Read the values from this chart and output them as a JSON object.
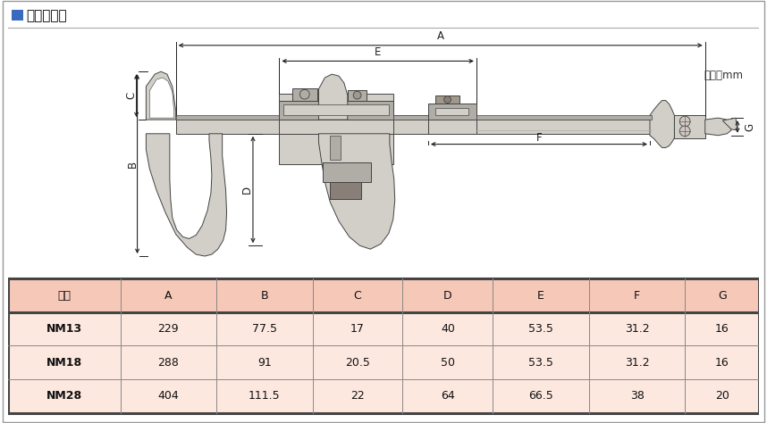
{
  "title_square_color": "#3a6abf",
  "title_text": "外観寸法図",
  "unit_label": "単位：mm",
  "table_header": [
    "符号",
    "A",
    "B",
    "C",
    "D",
    "E",
    "F",
    "G"
  ],
  "table_rows": [
    [
      "NM13",
      "229",
      "77.5",
      "17",
      "40",
      "53.5",
      "31.2",
      "16"
    ],
    [
      "NM18",
      "288",
      "91",
      "20.5",
      "50",
      "53.5",
      "31.2",
      "16"
    ],
    [
      "NM28",
      "404",
      "111.5",
      "22",
      "64",
      "66.5",
      "38",
      "20"
    ]
  ],
  "header_bg": "#f5c8b8",
  "row_bg": "#fde8e0",
  "border_thick_color": "#444444",
  "border_thin_color": "#888888",
  "thick_lw": 2.2,
  "thin_lw": 0.7,
  "caliper_fill": "#d2cfc8",
  "caliper_dark": "#b0ada6",
  "caliper_edge": "#444444",
  "bg_color": "#ffffff",
  "dim_color": "#222222",
  "figure_width": 8.58,
  "figure_height": 4.74,
  "table_fontsize": 9.0,
  "dim_fontsize": 8.5
}
